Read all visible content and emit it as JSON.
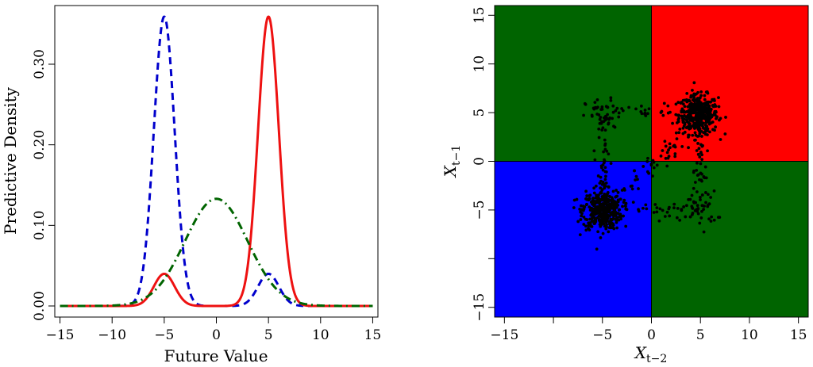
{
  "chart_data": [
    {
      "type": "line",
      "title": "",
      "xlabel": "Future Value",
      "ylabel": "Predictive Density",
      "xlim": [
        -15.5,
        15.5
      ],
      "ylim": [
        0,
        0.36
      ],
      "xticks": [
        -15,
        -10,
        -5,
        0,
        5,
        10,
        15
      ],
      "xtick_labels": [
        "−15",
        "−10",
        "−5",
        "0",
        "5",
        "10",
        "15"
      ],
      "yticks": [
        0.0,
        0.1,
        0.2,
        0.3
      ],
      "ytick_labels": [
        "0.00",
        "0.10",
        "0.20",
        "0.30"
      ],
      "x_range": [
        -15,
        15
      ],
      "grid": false,
      "series": [
        {
          "color": "#0000cc",
          "style": "dashed",
          "components": [
            {
              "weight": 0.9,
              "mean": -5,
              "sd": 1
            },
            {
              "weight": 0.1,
              "mean": 5,
              "sd": 1
            }
          ]
        },
        {
          "color": "#ee1111",
          "style": "solid",
          "components": [
            {
              "weight": 0.1,
              "mean": -5,
              "sd": 1
            },
            {
              "weight": 0.9,
              "mean": 5,
              "sd": 1
            }
          ]
        },
        {
          "color": "#006400",
          "style": "dashdot",
          "components": [
            {
              "weight": 1.0,
              "mean": 0,
              "sd": 3
            }
          ]
        }
      ]
    },
    {
      "type": "scatter",
      "title": "",
      "xlabel_main": "X",
      "xlabel_sub": "t−2",
      "ylabel_main": "X",
      "ylabel_sub": "t−1",
      "xlim": [
        -16,
        16
      ],
      "ylim": [
        -16,
        16
      ],
      "xticks": [
        -15,
        -5,
        0,
        5,
        10,
        15
      ],
      "xtick_labels": [
        "−15",
        "−5",
        "0",
        "5",
        "10",
        "15"
      ],
      "xtick_marks": [
        -15,
        -10,
        -5,
        0,
        5,
        10,
        15
      ],
      "yticks": [
        -15,
        -5,
        0,
        5,
        10,
        15
      ],
      "ytick_labels": [
        "−15",
        "−5",
        "0",
        "5",
        "10",
        "15"
      ],
      "ytick_marks": [
        -15,
        -10,
        -5,
        0,
        5,
        10,
        15
      ],
      "regions": [
        {
          "x": [
            -16,
            0
          ],
          "y": [
            0,
            16
          ],
          "color": "#006400"
        },
        {
          "x": [
            0,
            16
          ],
          "y": [
            0,
            16
          ],
          "color": "#ff0000"
        },
        {
          "x": [
            -16,
            0
          ],
          "y": [
            -16,
            0
          ],
          "color": "#0000ff"
        },
        {
          "x": [
            0,
            16
          ],
          "y": [
            -16,
            0
          ],
          "color": "#006400"
        }
      ],
      "point_color": "#000000",
      "clusters": [
        {
          "cx": 4.8,
          "cy": 4.8,
          "n": 420,
          "sd": 1.0
        },
        {
          "cx": -5.0,
          "cy": -5.0,
          "n": 420,
          "sd": 1.0
        },
        {
          "cx": -4.9,
          "cy": 4.6,
          "n": 45,
          "sd": 0.9
        },
        {
          "cx": 4.9,
          "cy": -4.9,
          "n": 45,
          "sd": 0.9
        }
      ],
      "strands": [
        {
          "x": [
            -5,
            -5
          ],
          "y": [
            -3,
            3.5
          ],
          "n": 40,
          "sd": 0.8
        },
        {
          "x": [
            5,
            5
          ],
          "y": [
            -3.5,
            3
          ],
          "n": 40,
          "sd": 0.8
        },
        {
          "x": [
            -3.5,
            3.5
          ],
          "y": [
            -5,
            -5
          ],
          "n": 25,
          "sd": 0.8
        },
        {
          "x": [
            -3.5,
            3.5
          ],
          "y": [
            5,
            5
          ],
          "n": 25,
          "sd": 0.8
        },
        {
          "x": [
            -2.5,
            3
          ],
          "y": [
            -3,
            2.5
          ],
          "n": 45,
          "sd": 0.9
        }
      ]
    }
  ]
}
